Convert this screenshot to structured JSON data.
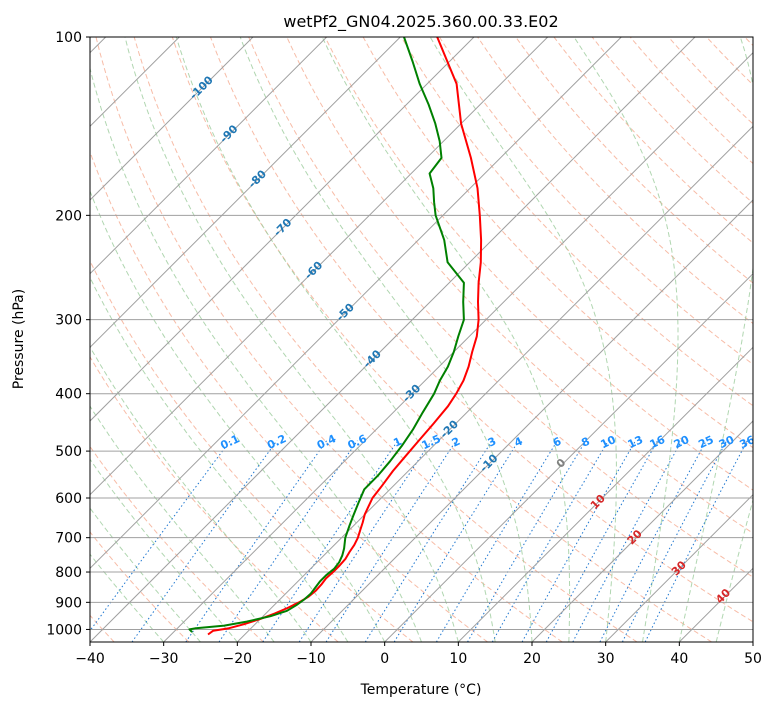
{
  "chart_data": {
    "type": "line",
    "title": "wetPf2_GN04.2025.360.00.33.E02",
    "xlabel": "Temperature (°C)",
    "ylabel": "Pressure (hPa)",
    "xlim": [
      -40,
      50
    ],
    "ylim": [
      1050,
      100
    ],
    "y_scale": "log",
    "x_ticks": [
      -40,
      -30,
      -20,
      -10,
      0,
      10,
      20,
      30,
      40,
      50
    ],
    "y_ticks": [
      100,
      200,
      300,
      400,
      500,
      600,
      700,
      800,
      900,
      1000
    ],
    "grid": true,
    "colors": {
      "temperature": "#ff0000",
      "dewpoint": "#008000",
      "isotherm": "#a0a0a0",
      "dry_adiabat": "#f4a58a",
      "moist_adiabat": "#9ccc9c",
      "mixing_ratio": "#1f77d0",
      "isotherm_label": "#1f77b4",
      "moist_label": "#d62728",
      "dry_label_mix": "#1e90ff"
    },
    "series": [
      {
        "key": "temperature",
        "p": [
          1020,
          1005,
          995,
          980,
          960,
          940,
          920,
          900,
          880,
          860,
          840,
          820,
          800,
          780,
          760,
          740,
          720,
          700,
          680,
          660,
          640,
          620,
          600,
          570,
          540,
          510,
          480,
          450,
          420,
          400,
          380,
          360,
          340,
          320,
          300,
          280,
          260,
          240,
          220,
          200,
          180,
          160,
          140,
          120,
          100
        ],
        "t": [
          -25.0,
          -24.8,
          -23.0,
          -21.5,
          -20.0,
          -18.8,
          -17.8,
          -17.0,
          -16.5,
          -16.3,
          -16.4,
          -16.6,
          -16.5,
          -16.5,
          -16.6,
          -17.0,
          -17.3,
          -17.8,
          -18.5,
          -19.2,
          -20.0,
          -20.6,
          -21.2,
          -21.6,
          -22.1,
          -22.4,
          -22.7,
          -23.0,
          -23.4,
          -24.0,
          -24.8,
          -26.0,
          -27.5,
          -29.0,
          -31.0,
          -33.5,
          -36.0,
          -38.5,
          -41.5,
          -45.0,
          -49.0,
          -54.0,
          -60.0,
          -66.0,
          -75.0
        ]
      },
      {
        "key": "dewpoint",
        "p": [
          1010,
          1000,
          995,
          985,
          970,
          950,
          930,
          910,
          890,
          870,
          850,
          830,
          810,
          790,
          770,
          750,
          730,
          700,
          670,
          640,
          610,
          580,
          550,
          520,
          490,
          460,
          430,
          400,
          380,
          360,
          340,
          320,
          300,
          280,
          260,
          240,
          220,
          200,
          190,
          180,
          170,
          160,
          150,
          140,
          130,
          120,
          110,
          100
        ],
        "t": [
          -27.5,
          -28.2,
          -27.5,
          -24.0,
          -21.5,
          -19.0,
          -17.5,
          -17.0,
          -16.7,
          -16.6,
          -16.8,
          -17.0,
          -17.0,
          -16.8,
          -17.0,
          -17.5,
          -18.2,
          -19.5,
          -20.5,
          -21.5,
          -22.5,
          -23.5,
          -23.5,
          -23.8,
          -24.3,
          -25.0,
          -26.0,
          -27.0,
          -28.0,
          -28.8,
          -30.0,
          -31.5,
          -33.0,
          -35.5,
          -38.0,
          -43.0,
          -46.5,
          -51.0,
          -53.0,
          -55.0,
          -57.5,
          -58.0,
          -60.5,
          -63.5,
          -67.0,
          -71.0,
          -75.0,
          -79.5
        ]
      }
    ],
    "isotherm_labels": [
      "-100",
      "-90",
      "-80",
      "-70",
      "-60",
      "-50",
      "-40",
      "-30",
      "-20",
      "-10"
    ],
    "mixing_ratio_labels": [
      "0.1",
      "0.2",
      "0.4",
      "0.6",
      "1",
      "1.5",
      "2",
      "3",
      "4",
      "6",
      "8",
      "10",
      "13",
      "16",
      "20",
      "25",
      "30",
      "36"
    ],
    "mixing_ratio_values": [
      0.1,
      0.2,
      0.4,
      0.6,
      1,
      1.5,
      2,
      3,
      4,
      6,
      8,
      10,
      13,
      16,
      20,
      25,
      30,
      36
    ],
    "moist_adiabat_labels": [
      "0",
      "10",
      "20",
      "30",
      "40"
    ]
  }
}
